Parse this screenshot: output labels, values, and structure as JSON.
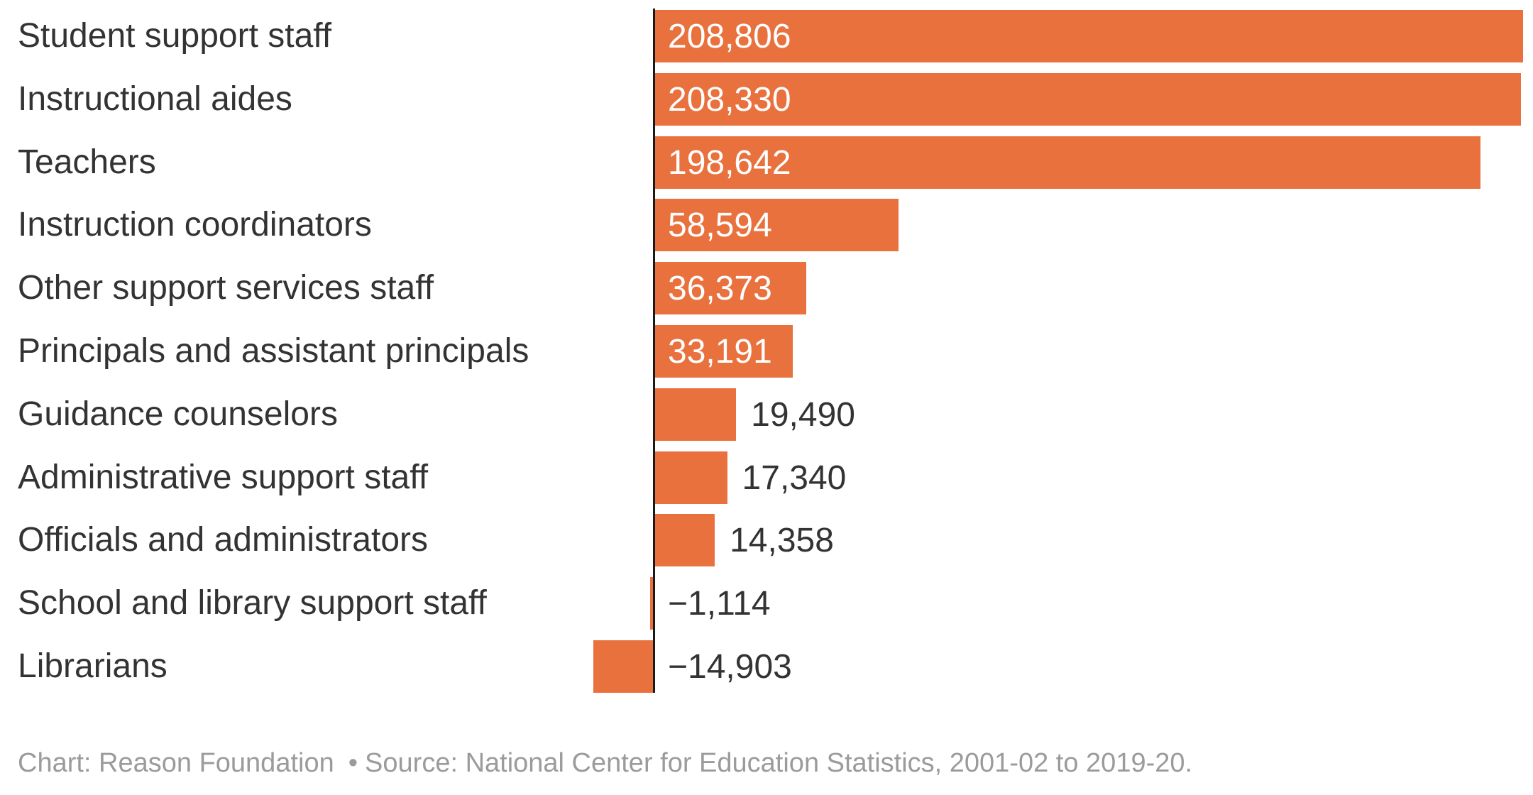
{
  "chart_data": {
    "type": "bar",
    "orientation": "horizontal",
    "title": "",
    "xlabel": "",
    "ylabel": "",
    "grid": false,
    "legend": false,
    "sort": "descending",
    "xlim": [
      -20000,
      212000
    ],
    "categories": [
      "Student support staff",
      "Instructional aides",
      "Teachers",
      "Instruction coordinators",
      "Other support services staff",
      "Principals and assistant principals",
      "Guidance counselors",
      "Administrative support staff",
      "Officials and administrators",
      "School and library support staff",
      "Librarians"
    ],
    "values": [
      208806,
      208330,
      198642,
      58594,
      36373,
      33191,
      19490,
      17340,
      14358,
      -1114,
      -14903
    ],
    "value_labels": [
      "208,806",
      "208,330",
      "198,642",
      "58,594",
      "36,373",
      "33,191",
      "19,490",
      "17,340",
      "14,358",
      "−1,114",
      "−14,903"
    ],
    "bar_color": "#e8713e",
    "category_label_color": "#333333",
    "value_label_inside_color": "#ffffff",
    "value_label_outside_color": "#333333",
    "axis_line_color": "#1a1a1a"
  },
  "footer": {
    "chart_credit": "Chart: Reason Foundation",
    "separator": "•",
    "source": "Source: National Center for Education Statistics, 2001-02 to 2019-20.",
    "color": "#9b9b9b"
  }
}
